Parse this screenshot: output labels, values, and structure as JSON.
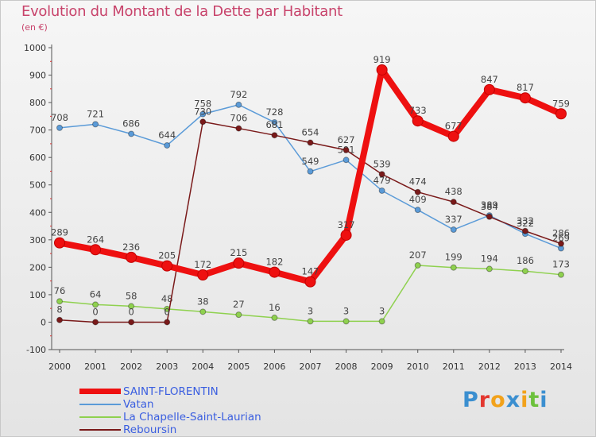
{
  "title": "Evolution du Montant de la Dette par Habitant",
  "subtitle": "(en €)",
  "logo": {
    "letters": [
      "P",
      "r",
      "o",
      "x",
      "i",
      "t",
      "i"
    ],
    "colors": [
      "#3b8fd0",
      "#e3372f",
      "#f2a21b",
      "#3b8fd0",
      "#f2a21b",
      "#6cc13c",
      "#3b8fd0"
    ]
  },
  "chart_data": {
    "type": "line",
    "x": [
      2000,
      2001,
      2002,
      2003,
      2004,
      2005,
      2006,
      2007,
      2008,
      2009,
      2010,
      2011,
      2012,
      2013,
      2014
    ],
    "ylim": [
      -100,
      1000
    ],
    "yticks": [
      -100,
      0,
      100,
      200,
      300,
      400,
      500,
      600,
      700,
      800,
      900,
      1000
    ],
    "xlabel": "",
    "ylabel": "",
    "grid": false,
    "legend_position": "bottom-left",
    "series": [
      {
        "name": "SAINT-FLORENTIN",
        "color": "#ee1010",
        "emphasis": true,
        "values": [
          289,
          264,
          236,
          205,
          172,
          215,
          182,
          147,
          317,
          919,
          733,
          677,
          847,
          817,
          759
        ]
      },
      {
        "name": "Vatan",
        "color": "#5b9bd8",
        "emphasis": false,
        "values": [
          708,
          721,
          686,
          644,
          758,
          792,
          728,
          549,
          591,
          479,
          409,
          337,
          389,
          322,
          269
        ]
      },
      {
        "name": "La Chapelle-Saint-Laurian",
        "color": "#8fd14f",
        "emphasis": false,
        "values": [
          76,
          64,
          58,
          48,
          38,
          27,
          16,
          3,
          3,
          3,
          207,
          199,
          194,
          186,
          173
        ]
      },
      {
        "name": "Reboursin",
        "color": "#7a1a1a",
        "emphasis": false,
        "values": [
          8,
          0,
          0,
          0,
          730,
          706,
          681,
          654,
          627,
          539,
          474,
          438,
          384,
          332,
          286
        ]
      }
    ]
  }
}
